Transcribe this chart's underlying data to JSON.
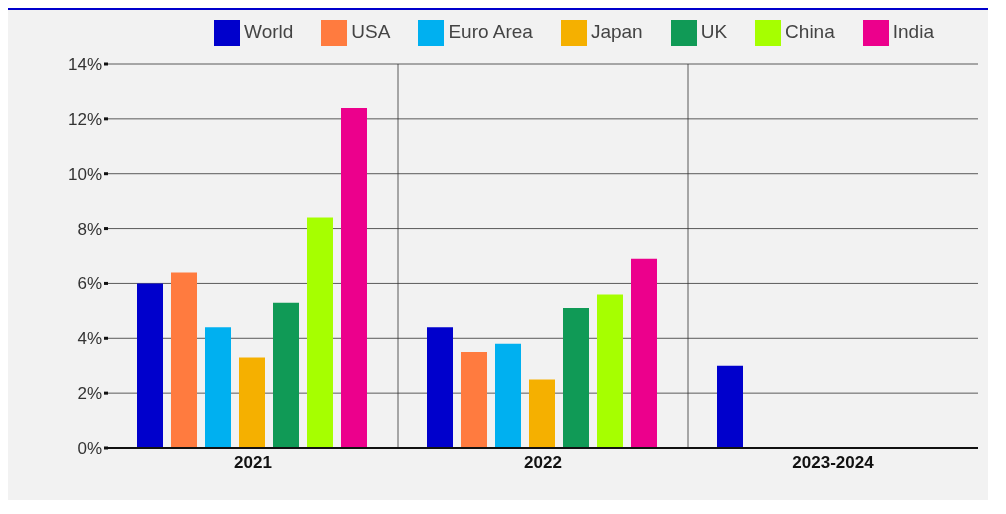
{
  "chart_data": {
    "type": "bar",
    "categories": [
      "2021",
      "2022",
      "2023-2024"
    ],
    "series": [
      {
        "name": "World",
        "color": "#0000cc",
        "values": [
          6.0,
          4.4,
          3.0
        ]
      },
      {
        "name": "USA",
        "color": "#ff7b3f",
        "values": [
          6.4,
          3.5,
          null
        ]
      },
      {
        "name": "Euro Area",
        "color": "#00b0f0",
        "values": [
          4.4,
          3.8,
          null
        ]
      },
      {
        "name": "Japan",
        "color": "#f5b000",
        "values": [
          3.3,
          2.5,
          null
        ]
      },
      {
        "name": "UK",
        "color": "#109a56",
        "values": [
          5.3,
          5.1,
          null
        ]
      },
      {
        "name": "China",
        "color": "#a6ff00",
        "values": [
          8.4,
          5.6,
          null
        ]
      },
      {
        "name": "India",
        "color": "#ec008c",
        "values": [
          12.4,
          6.9,
          null
        ]
      }
    ],
    "ylim": [
      0,
      14
    ],
    "yticks": [
      {
        "value": 0,
        "label": "0%"
      },
      {
        "value": 2,
        "label": "2%"
      },
      {
        "value": 4,
        "label": "4%"
      },
      {
        "value": 6,
        "label": "6%"
      },
      {
        "value": 8,
        "label": "8%"
      },
      {
        "value": 10,
        "label": "10%"
      },
      {
        "value": 12,
        "label": "12%"
      },
      {
        "value": 14,
        "label": "14%"
      }
    ],
    "grid": true,
    "legend": "top"
  }
}
